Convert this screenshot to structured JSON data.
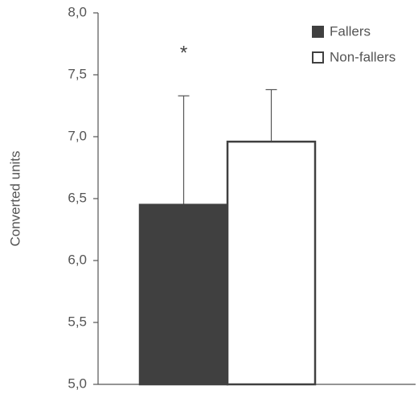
{
  "chart_data": {
    "type": "bar",
    "y_label": "Converted units",
    "categories": [
      null
    ],
    "series": [
      {
        "name": "Fallers",
        "color": "#404040",
        "values": [
          6.45
        ],
        "errors": [
          0.88
        ]
      },
      {
        "name": "Non-fallers",
        "color": "#ffffff",
        "values": [
          6.96
        ],
        "errors": [
          0.42
        ]
      }
    ],
    "annotations": [
      "*"
    ],
    "ylim": [
      5,
      8
    ],
    "yticks": [
      {
        "value": 5,
        "label": "5,0"
      },
      {
        "value": 5.5,
        "label": "5,5"
      },
      {
        "value": 6,
        "label": "6,0"
      },
      {
        "value": 6.5,
        "label": "6,5"
      },
      {
        "value": 7,
        "label": "7,0"
      },
      {
        "value": 7.5,
        "label": "7,5"
      },
      {
        "value": 8,
        "label": "8,0"
      }
    ],
    "legend": "upper right"
  }
}
